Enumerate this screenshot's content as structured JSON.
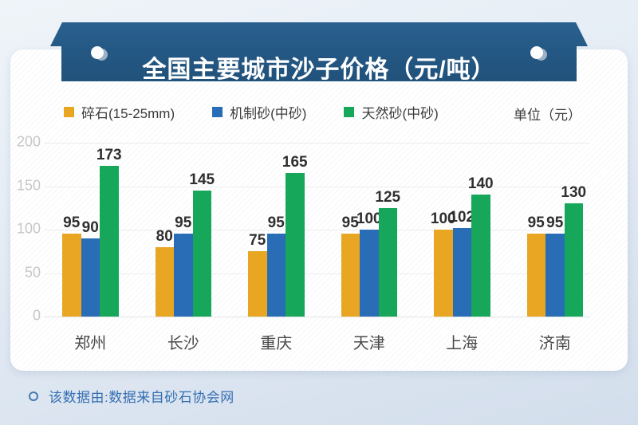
{
  "banner": {
    "title": "全国主要城市沙子价格（元/吨）"
  },
  "legend": {
    "items": [
      {
        "label": "碎石(15-25mm)",
        "color": "#e8a623"
      },
      {
        "label": "机制砂(中砂)",
        "color": "#2a6db7"
      },
      {
        "label": "天然砂(中砂)",
        "color": "#16a75a"
      }
    ],
    "unit_label": "单位（元）"
  },
  "chart_data": {
    "type": "bar",
    "title": "全国主要城市沙子价格（元/吨）",
    "categories": [
      "郑州",
      "长沙",
      "重庆",
      "天津",
      "上海",
      "济南"
    ],
    "series": [
      {
        "name": "碎石(15-25mm)",
        "color": "#e8a623",
        "values": [
          95,
          80,
          75,
          95,
          100,
          95
        ]
      },
      {
        "name": "机制砂(中砂)",
        "color": "#2a6db7",
        "values": [
          90,
          95,
          95,
          100,
          102,
          95
        ]
      },
      {
        "name": "天然砂(中砂)",
        "color": "#16a75a",
        "values": [
          173,
          145,
          165,
          125,
          140,
          130
        ]
      }
    ],
    "xlabel": "",
    "ylabel": "元/吨",
    "ylim": [
      0,
      200
    ],
    "yticks": [
      0,
      50,
      100,
      150,
      200
    ],
    "grid": true,
    "legend_position": "top",
    "value_labels": true
  },
  "footer": {
    "note": "该数据由:数据来自砂石协会网"
  },
  "colors": {
    "banner": "#235681",
    "card": "#ffffff",
    "grid": "#ededed",
    "ytick_text": "#c7c7c7",
    "value_label_text": "#2f2f2f",
    "category_text": "#4a4a4a",
    "footer_text": "#356fb2"
  }
}
